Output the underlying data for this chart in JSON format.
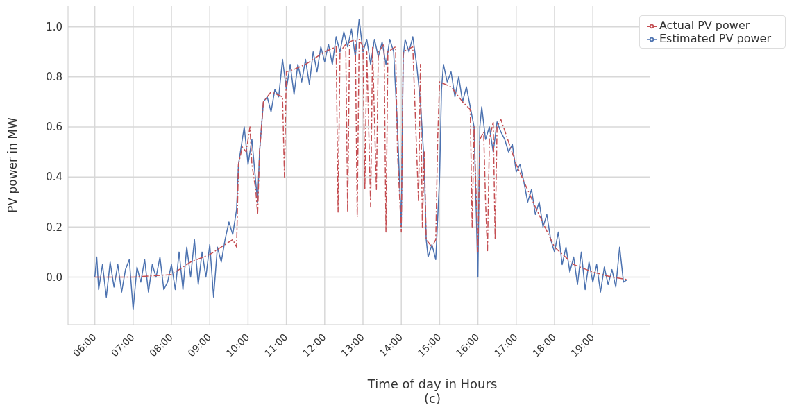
{
  "chart_data": {
    "type": "line",
    "xlabel": "Time of day in Hours",
    "ylabel": "PV power in MW",
    "annotations": [
      "(c)"
    ],
    "xlim": [
      5.3,
      20.5
    ],
    "ylim": [
      -0.19,
      1.085
    ],
    "xticks": [
      {
        "value": 6,
        "label": "06:00"
      },
      {
        "value": 7,
        "label": "07:00"
      },
      {
        "value": 8,
        "label": "08:00"
      },
      {
        "value": 9,
        "label": "09:00"
      },
      {
        "value": 10,
        "label": "10:00"
      },
      {
        "value": 11,
        "label": "11:00"
      },
      {
        "value": 12,
        "label": "12:00"
      },
      {
        "value": 13,
        "label": "13:00"
      },
      {
        "value": 14,
        "label": "14:00"
      },
      {
        "value": 15,
        "label": "15:00"
      },
      {
        "value": 16,
        "label": "16:00"
      },
      {
        "value": 17,
        "label": "17:00"
      },
      {
        "value": 18,
        "label": "18:00"
      },
      {
        "value": 19,
        "label": "19:00"
      }
    ],
    "yticks": [
      {
        "value": 0,
        "label": "0.0"
      },
      {
        "value": 0.2,
        "label": "0.2"
      },
      {
        "value": 0.4,
        "label": "0.4"
      },
      {
        "value": 0.6,
        "label": "0.6"
      },
      {
        "value": 0.8,
        "label": "0.8"
      },
      {
        "value": 1,
        "label": "1.0"
      }
    ],
    "grid": true,
    "legend": "top right",
    "marker": "none",
    "series": [
      {
        "name": "Estimated PV power",
        "color": "#4c72b0",
        "line_style": "solid",
        "x": [
          6.0,
          6.05,
          6.1,
          6.2,
          6.3,
          6.4,
          6.5,
          6.6,
          6.7,
          6.8,
          6.9,
          7.0,
          7.1,
          7.2,
          7.3,
          7.4,
          7.5,
          7.6,
          7.7,
          7.8,
          7.9,
          8.0,
          8.1,
          8.2,
          8.3,
          8.4,
          8.5,
          8.6,
          8.7,
          8.8,
          8.9,
          9.0,
          9.1,
          9.2,
          9.3,
          9.4,
          9.5,
          9.6,
          9.7,
          9.75,
          9.8,
          9.9,
          10.0,
          10.1,
          10.2,
          10.25,
          10.3,
          10.4,
          10.5,
          10.6,
          10.7,
          10.8,
          10.9,
          11.0,
          11.1,
          11.2,
          11.3,
          11.4,
          11.5,
          11.6,
          11.7,
          11.8,
          11.9,
          12.0,
          12.1,
          12.2,
          12.3,
          12.4,
          12.5,
          12.6,
          12.7,
          12.8,
          12.9,
          13.0,
          13.1,
          13.2,
          13.3,
          13.4,
          13.5,
          13.6,
          13.7,
          13.8,
          13.9,
          14.0,
          14.05,
          14.1,
          14.2,
          14.3,
          14.4,
          14.5,
          14.6,
          14.65,
          14.7,
          14.8,
          14.9,
          15.0,
          15.05,
          15.1,
          15.2,
          15.3,
          15.4,
          15.5,
          15.6,
          15.7,
          15.8,
          15.9,
          16.0,
          16.05,
          16.1,
          16.2,
          16.3,
          16.4,
          16.5,
          16.6,
          16.7,
          16.8,
          16.9,
          17.0,
          17.1,
          17.2,
          17.3,
          17.4,
          17.5,
          17.6,
          17.7,
          17.8,
          17.9,
          18.0,
          18.1,
          18.2,
          18.3,
          18.4,
          18.5,
          18.6,
          18.7,
          18.8,
          18.9,
          19.0,
          19.1,
          19.2,
          19.3,
          19.4,
          19.5,
          19.6,
          19.7,
          19.8,
          19.9
        ],
        "values": [
          0.0,
          0.08,
          -0.05,
          0.05,
          -0.08,
          0.06,
          -0.04,
          0.05,
          -0.06,
          0.03,
          0.07,
          -0.13,
          0.04,
          -0.02,
          0.07,
          -0.06,
          0.05,
          0.0,
          0.08,
          -0.05,
          -0.02,
          0.05,
          -0.05,
          0.1,
          -0.05,
          0.12,
          0.0,
          0.15,
          -0.03,
          0.1,
          0.0,
          0.13,
          -0.08,
          0.12,
          0.06,
          0.15,
          0.22,
          0.17,
          0.27,
          0.45,
          0.5,
          0.6,
          0.45,
          0.55,
          0.38,
          0.3,
          0.5,
          0.7,
          0.72,
          0.66,
          0.75,
          0.72,
          0.87,
          0.75,
          0.85,
          0.73,
          0.85,
          0.78,
          0.87,
          0.77,
          0.9,
          0.82,
          0.92,
          0.86,
          0.93,
          0.85,
          0.96,
          0.9,
          0.98,
          0.92,
          0.99,
          0.88,
          1.03,
          0.9,
          0.95,
          0.85,
          0.95,
          0.88,
          0.94,
          0.85,
          0.95,
          0.9,
          0.6,
          0.2,
          0.88,
          0.95,
          0.9,
          0.96,
          0.85,
          0.7,
          0.45,
          0.15,
          0.08,
          0.13,
          0.07,
          0.4,
          0.75,
          0.85,
          0.78,
          0.82,
          0.72,
          0.8,
          0.7,
          0.76,
          0.68,
          0.6,
          0.0,
          0.6,
          0.68,
          0.55,
          0.6,
          0.5,
          0.62,
          0.58,
          0.55,
          0.5,
          0.53,
          0.42,
          0.45,
          0.38,
          0.3,
          0.35,
          0.25,
          0.3,
          0.2,
          0.25,
          0.15,
          0.1,
          0.18,
          0.05,
          0.12,
          0.02,
          0.08,
          -0.03,
          0.1,
          -0.05,
          0.06,
          -0.02,
          0.05,
          -0.06,
          0.04,
          -0.03,
          0.03,
          -0.04,
          0.12,
          -0.02,
          -0.01
        ]
      },
      {
        "name": "Actual PV power",
        "color": "#c44e52",
        "line_style": "dashdot",
        "x": [
          6.0,
          7.0,
          8.0,
          8.5,
          9.0,
          9.3,
          9.6,
          9.7,
          9.75,
          9.85,
          9.95,
          10.05,
          10.1,
          10.2,
          10.25,
          10.3,
          10.4,
          10.6,
          10.9,
          10.95,
          11.0,
          11.2,
          11.5,
          11.8,
          12.0,
          12.3,
          12.35,
          12.4,
          12.55,
          12.6,
          12.65,
          12.8,
          12.85,
          12.9,
          13.0,
          13.05,
          13.1,
          13.2,
          13.25,
          13.35,
          13.4,
          13.55,
          13.6,
          13.65,
          13.85,
          13.9,
          14.0,
          14.05,
          14.3,
          14.45,
          14.5,
          14.55,
          14.6,
          14.65,
          14.8,
          14.9,
          14.95,
          15.0,
          15.3,
          15.6,
          15.8,
          15.85,
          15.9,
          16.0,
          16.05,
          16.15,
          16.2,
          16.25,
          16.3,
          16.4,
          16.45,
          16.5,
          16.6,
          17.0,
          17.5,
          18.0,
          18.5,
          19.0,
          19.5,
          19.9
        ],
        "values": [
          0.0,
          0.0,
          0.01,
          0.06,
          0.09,
          0.12,
          0.15,
          0.12,
          0.45,
          0.52,
          0.5,
          0.6,
          0.45,
          0.35,
          0.25,
          0.5,
          0.7,
          0.74,
          0.72,
          0.4,
          0.82,
          0.83,
          0.85,
          0.88,
          0.9,
          0.92,
          0.26,
          0.9,
          0.93,
          0.26,
          0.94,
          0.95,
          0.24,
          0.95,
          0.92,
          0.35,
          0.9,
          0.28,
          0.92,
          0.35,
          0.9,
          0.93,
          0.18,
          0.9,
          0.92,
          0.5,
          0.18,
          0.9,
          0.92,
          0.3,
          0.85,
          0.2,
          0.5,
          0.15,
          0.12,
          0.15,
          0.55,
          0.78,
          0.76,
          0.7,
          0.67,
          0.2,
          0.6,
          0.1,
          0.55,
          0.58,
          0.3,
          0.1,
          0.55,
          0.62,
          0.15,
          0.6,
          0.63,
          0.45,
          0.28,
          0.12,
          0.05,
          0.02,
          0.0,
          -0.01
        ]
      }
    ]
  }
}
